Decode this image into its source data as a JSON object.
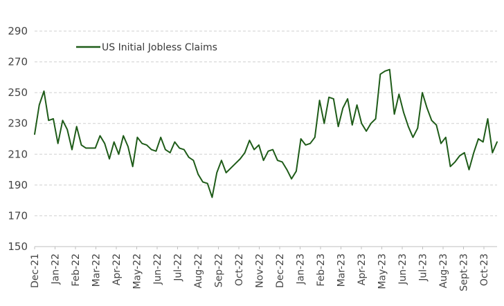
{
  "chart_data": {
    "type": "line",
    "title": "",
    "xlabel": "",
    "ylabel": "",
    "ylim": [
      150,
      290
    ],
    "yticks": [
      150,
      170,
      190,
      210,
      230,
      250,
      270,
      290
    ],
    "grid": "horizontal dashed",
    "legend_position": "top-left",
    "xtick_labels": [
      "Dec-21",
      "Jan-22",
      "Feb-22",
      "Mar-22",
      "Apr-22",
      "May-22",
      "Jun-22",
      "Jul-22",
      "Aug-22",
      "Sep-22",
      "Oct-22",
      "Nov-22",
      "Dec-22",
      "Jan-23",
      "Feb-23",
      "Mar-23",
      "Apr-23",
      "May-23",
      "Jun-23",
      "Jul-23",
      "Aug-23",
      "Sept-23",
      "Oct-23"
    ],
    "series": [
      {
        "name": "US Initial Jobless Claims",
        "color": "#1e5b18",
        "values": [
          223,
          242,
          251,
          232,
          233,
          217,
          232,
          226,
          213,
          228,
          216,
          214,
          214,
          214,
          222,
          217,
          207,
          218,
          210,
          222,
          215,
          202,
          221,
          217,
          216,
          213,
          212,
          221,
          213,
          211,
          218,
          214,
          213,
          208,
          206,
          197,
          192,
          191,
          182,
          198,
          206,
          198,
          201,
          204,
          207,
          211,
          219,
          213,
          216,
          206,
          212,
          213,
          206,
          205,
          200,
          194,
          199,
          220,
          216,
          217,
          221,
          245,
          230,
          247,
          246,
          228,
          240,
          246,
          229,
          242,
          230,
          225,
          230,
          233,
          262,
          264,
          265,
          236,
          249,
          237,
          228,
          221,
          227,
          250,
          240,
          232,
          229,
          217,
          221,
          202,
          205,
          209,
          211,
          200,
          211,
          220,
          218,
          233,
          211,
          218
        ]
      }
    ]
  }
}
